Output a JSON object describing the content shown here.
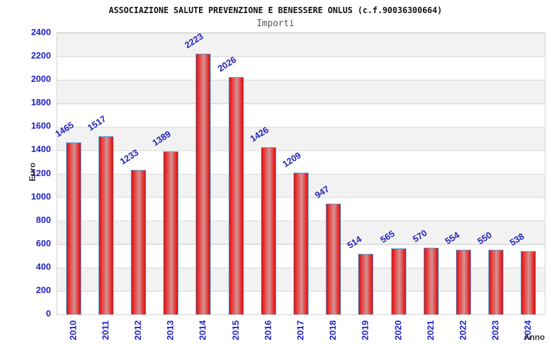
{
  "chart_data": {
    "type": "bar",
    "title": "ASSOCIAZIONE SALUTE PREVENZIONE E BENESSERE ONLUS (c.f.90036300664)",
    "subtitle": "Importi",
    "xlabel": "Anno",
    "ylabel": "Euro",
    "categories": [
      "2010",
      "2011",
      "2012",
      "2013",
      "2014",
      "2015",
      "2016",
      "2017",
      "2018",
      "2019",
      "2020",
      "2021",
      "2022",
      "2023",
      "2024"
    ],
    "values": [
      1465,
      1517,
      1233,
      1389,
      2223,
      2026,
      1426,
      1209,
      947,
      514,
      565,
      570,
      554,
      550,
      538
    ],
    "ylim": [
      0,
      2400
    ],
    "ytick_step": 200,
    "grid": true,
    "legend_position": "none",
    "background_bands": true,
    "colors": {
      "bar_edge": "#c01818",
      "bar_bright": "#ee2626",
      "bar_mid": "#d09494",
      "bar_border": "#5b9bd5",
      "value_label": "#2222bb",
      "tick_label": "#2121cc",
      "band": "#f2f2f2",
      "gridline": "#d9d9d9",
      "plot_border": "#d4d4d4",
      "axis_title": "#333333",
      "title": "#111111",
      "subtitle": "#555555"
    }
  }
}
